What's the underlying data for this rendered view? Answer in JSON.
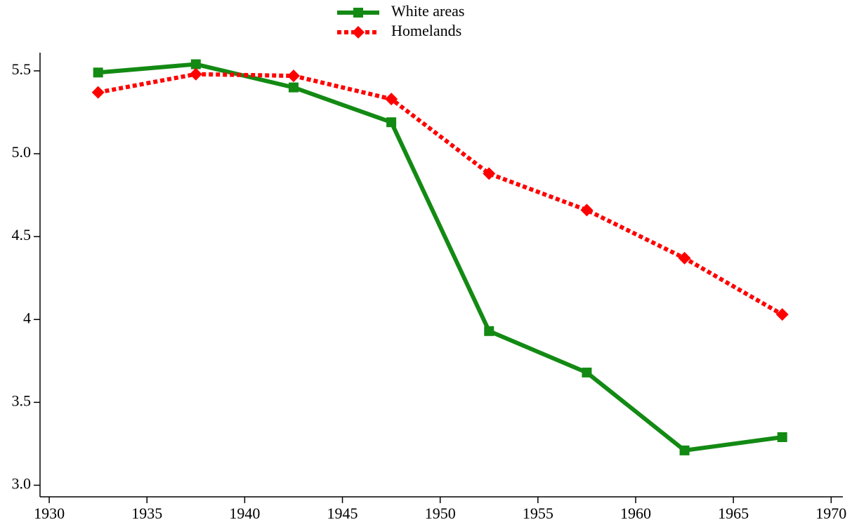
{
  "chart_data": {
    "type": "line",
    "x": [
      1932.5,
      1937.5,
      1942.5,
      1947.5,
      1952.5,
      1957.5,
      1962.5,
      1967.5
    ],
    "series": [
      {
        "name": "White areas",
        "color": "#138a13",
        "marker": "square",
        "dash": false,
        "values": [
          5.49,
          5.54,
          5.4,
          5.19,
          3.93,
          3.68,
          3.21,
          3.29
        ]
      },
      {
        "name": "Homelands",
        "color": "#ff0000",
        "marker": "diamond",
        "dash": true,
        "values": [
          5.37,
          5.48,
          5.47,
          5.33,
          4.88,
          4.66,
          4.37,
          4.03
        ]
      }
    ],
    "xlim": [
      1929.53,
      1970.6
    ],
    "xticks": [
      1930,
      1935,
      1940,
      1945,
      1950,
      1955,
      1960,
      1965,
      1970
    ],
    "ylim": [
      2.93,
      5.61
    ],
    "yticks": [
      {
        "value": 3,
        "label": "3.0"
      },
      3.5,
      4,
      {
        "value": 4,
        "label": "4.0"
      },
      4.5,
      {
        "value": 5,
        "label": "5.0"
      },
      5.5
    ],
    "legend": "top"
  }
}
